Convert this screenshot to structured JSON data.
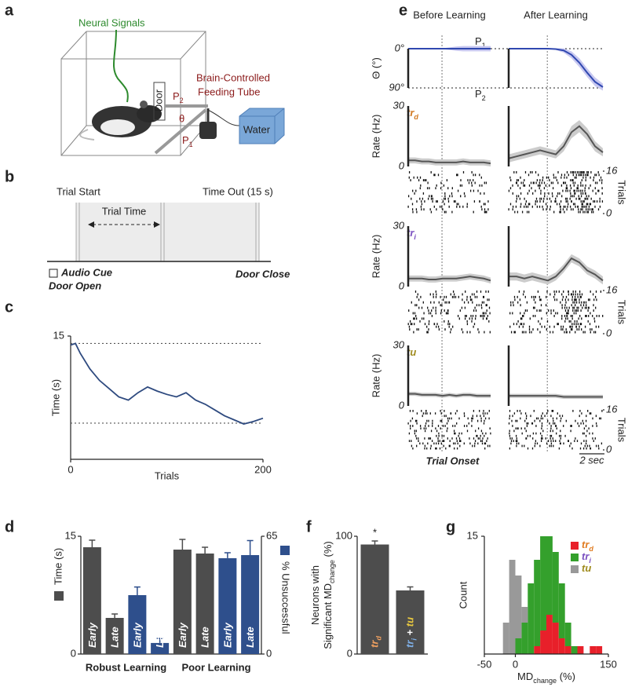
{
  "diagram_a": {
    "label": "a",
    "neural_signals": "Neural Signals",
    "door": "Door",
    "p2": "P",
    "p2_sub": "2",
    "theta": "θ",
    "p1": "P",
    "p1_sub": "1",
    "tube_line1": "Brain-Controlled",
    "tube_line2": "Feeding Tube",
    "water": "Water"
  },
  "diagram_b": {
    "label": "b",
    "trial_start": "Trial Start",
    "time_out": "Time Out (15 s)",
    "trial_time": "Trial Time",
    "audio_cue": "Audio Cue",
    "door_open": "Door Open",
    "door_close": "Door Close"
  },
  "chart_data": [
    {
      "type": "line",
      "panel_label": "c",
      "ylabel": "Time (s)",
      "xlabel": "Trials",
      "x": [
        0,
        5,
        10,
        20,
        30,
        40,
        50,
        60,
        70,
        80,
        90,
        100,
        110,
        120,
        130,
        140,
        150,
        160,
        170,
        180,
        190,
        200
      ],
      "series": [
        {
          "color": "#2e4a7f",
          "values": [
            13.9,
            14.1,
            12.9,
            11.0,
            9.6,
            8.6,
            7.6,
            7.2,
            8.1,
            8.8,
            8.3,
            7.9,
            7.6,
            8.1,
            7.2,
            6.7,
            6.0,
            5.3,
            4.8,
            4.3,
            4.6,
            5.0
          ]
        }
      ],
      "hlines": [
        14.1,
        4.4
      ],
      "xlim": [
        0,
        200
      ],
      "xticks": [
        0,
        200
      ],
      "ylim": [
        0,
        15
      ],
      "yticks": [
        15
      ]
    },
    {
      "type": "bar",
      "panel_label": "d",
      "categories": [
        "Early",
        "Late",
        "Early",
        "Late",
        "Early",
        "Late",
        "Early",
        "Late"
      ],
      "groups": [
        "Robust Learning",
        "Poor Learning"
      ],
      "series": [
        {
          "name": "Time (s)",
          "color": "#4d4d4d",
          "values": [
            13.6,
            4.6,
            null,
            null,
            13.3,
            12.8,
            null,
            null
          ],
          "errors": [
            0.9,
            0.5,
            null,
            null,
            1.3,
            0.8,
            null,
            null
          ]
        },
        {
          "name": "% Unsuccessful",
          "color": "#2e4f8c",
          "axis": "y2",
          "values": [
            null,
            null,
            32.5,
            6.1,
            null,
            null,
            52.9,
            54.6
          ],
          "errors": [
            null,
            null,
            4.5,
            2.5,
            null,
            null,
            3,
            8
          ]
        }
      ],
      "ylim": [
        0,
        15
      ],
      "yticks": [
        0,
        15
      ],
      "y2lim": [
        0,
        65
      ],
      "y2ticks": [
        0,
        65
      ]
    },
    {
      "type": "line-grid",
      "panel_label": "e",
      "columns": [
        "Before Learning",
        "After Learning"
      ],
      "xlabel": "Trial Onset",
      "scale_label": "2 sec",
      "rows": [
        {
          "ylabel": "Θ (°)",
          "ylim": [
            90,
            0
          ],
          "yticks": [
            {
              "value": 0,
              "label": "0°"
            },
            {
              "value": 90,
              "label": "90°"
            }
          ],
          "grid": true,
          "color": "#3048b0",
          "band_color": "#c8c8f0",
          "annotations": [
            [
              {
                "text": "P"
              },
              {
                "text": "1",
                "subscript": true
              }
            ],
            [
              {
                "text": "P"
              },
              {
                "text": "2",
                "subscript": true
              }
            ]
          ],
          "series": [
            {
              "values": [
                0,
                0,
                0,
                0,
                0,
                0,
                0,
                0,
                0,
                0,
                0,
                0,
                0
              ],
              "errors": [
                1,
                1,
                1,
                1,
                1,
                1,
                3,
                5,
                6,
                6,
                6,
                6,
                6
              ]
            },
            {
              "values": [
                0,
                0,
                0,
                0,
                0,
                0,
                1,
                4,
                14,
                32,
                55,
                76,
                88
              ],
              "errors": [
                0,
                0,
                0,
                0,
                0,
                0,
                2,
                5,
                8,
                10,
                10,
                10,
                8
              ]
            }
          ]
        },
        {
          "tag": [
            {
              "text": "tr",
              "color": "#d07820"
            },
            {
              "text": "d",
              "color": "#d07820",
              "subscript": true
            }
          ],
          "ylabel": "Rate (Hz)",
          "ylim": [
            0,
            30
          ],
          "yticks": [
            0,
            30
          ],
          "color": "#555555",
          "band_color": "#cccccc",
          "raster_label": "Trials",
          "raster_lim": [
            0,
            16
          ],
          "raster_ticks": [
            0,
            16
          ],
          "series": [
            {
              "values": [
                3,
                3,
                2.5,
                2.5,
                2,
                2,
                2,
                2,
                2.5,
                2,
                2,
                2,
                1.5
              ],
              "errors": [
                1.5,
                1.5,
                1.5,
                1.5,
                1.5,
                1.5,
                1.5,
                1.5,
                1.5,
                1.5,
                1.5,
                1.5,
                1.5
              ]
            },
            {
              "values": [
                4,
                5,
                6,
                7,
                8,
                7,
                6,
                10,
                17,
                20,
                16,
                10,
                7
              ],
              "errors": [
                2,
                2,
                2,
                2,
                2,
                2,
                2,
                2.5,
                3,
                3,
                3,
                2.5,
                2
              ]
            }
          ]
        },
        {
          "tag": [
            {
              "text": "tr",
              "color": "#7a4fc0"
            },
            {
              "text": "i",
              "color": "#7a4fc0",
              "subscript": true
            }
          ],
          "ylabel": "Rate (Hz)",
          "ylim": [
            0,
            30
          ],
          "yticks": [
            0,
            30
          ],
          "color": "#555555",
          "band_color": "#cccccc",
          "raster_label": "Trials",
          "raster_lim": [
            0,
            16
          ],
          "raster_ticks": [
            0,
            16
          ],
          "series": [
            {
              "values": [
                4,
                4,
                4,
                3.5,
                3.5,
                4,
                4,
                4,
                4.5,
                5,
                4.5,
                4,
                3
              ],
              "errors": [
                1.5,
                1.5,
                1.5,
                1.5,
                1.5,
                1.5,
                1.5,
                1.5,
                1.5,
                1.5,
                1.5,
                1.5,
                1.5
              ]
            },
            {
              "values": [
                5,
                5,
                4,
                5,
                4,
                3,
                5,
                9,
                14,
                12,
                8,
                6,
                3
              ],
              "errors": [
                2,
                2,
                2,
                2,
                2,
                2,
                2,
                2,
                2,
                2,
                2,
                2,
                2
              ]
            }
          ]
        },
        {
          "tag": [
            {
              "text": "tu",
              "color": "#a08c20"
            }
          ],
          "ylabel": "Rate (Hz)",
          "ylim": [
            0,
            30
          ],
          "yticks": [
            0,
            30
          ],
          "color": "#555555",
          "band_color": "#cccccc",
          "raster_label": "Trials",
          "raster_lim": [
            0,
            16
          ],
          "raster_ticks": [
            0,
            16
          ],
          "series": [
            {
              "values": [
                6,
                6,
                5.5,
                5.5,
                5.5,
                5,
                5.5,
                5,
                5.5,
                5.5,
                5,
                5,
                5
              ],
              "errors": [
                1,
                1,
                1,
                1,
                1,
                1,
                1,
                1,
                1,
                1,
                1,
                1,
                1
              ]
            },
            {
              "values": [
                5,
                5,
                5,
                5,
                5,
                5,
                5,
                4.5,
                4.5,
                4.5,
                4.5,
                4.5,
                4.5
              ],
              "errors": [
                1,
                1,
                1,
                1,
                1,
                1,
                1,
                1,
                1,
                1,
                1,
                1,
                1
              ]
            }
          ]
        }
      ]
    },
    {
      "type": "bar",
      "panel_label": "f",
      "categories": [
        [
          {
            "text": "tr",
            "color": "#f0a060"
          },
          {
            "text": "d",
            "color": "#f0a060",
            "subscript": true
          }
        ],
        [
          {
            "text": "tr",
            "color": "#7fb0e8"
          },
          {
            "text": "i",
            "color": "#7fb0e8",
            "subscript": true
          },
          {
            "text": " + ",
            "color": "#ffffff"
          },
          {
            "text": "tu",
            "color": "#e8c840"
          }
        ]
      ],
      "values": [
        93,
        54
      ],
      "errors": [
        3,
        3
      ],
      "color": "#4d4d4d",
      "significance": [
        "*",
        null
      ],
      "ylabel_lines": [
        [
          {
            "text": "Neurons with"
          }
        ],
        [
          {
            "text": "Significant MD"
          },
          {
            "text": "change",
            "subscript": true
          },
          {
            "text": " (%)"
          }
        ]
      ],
      "ylim": [
        0,
        100
      ],
      "yticks": [
        0,
        100
      ]
    },
    {
      "type": "histogram",
      "panel_label": "g",
      "ylabel": "Count",
      "xlabel": [
        {
          "text": "MD"
        },
        {
          "text": "change",
          "subscript": true
        },
        {
          "text": " (%)"
        }
      ],
      "bins": [
        -20,
        -10,
        0,
        10,
        20,
        30,
        40,
        50,
        60,
        70,
        80,
        90,
        100,
        110,
        120,
        130,
        140
      ],
      "series": [
        {
          "name": [
            {
              "text": "tr",
              "color": "#e07b20"
            },
            {
              "text": "d",
              "color": "#e07b20",
              "subscript": true
            }
          ],
          "color": "#e8202a",
          "values": [
            0,
            0,
            0,
            0,
            0,
            1,
            3,
            5,
            4,
            2,
            1,
            0,
            1,
            0,
            1,
            1
          ]
        },
        {
          "name": [
            {
              "text": "tr",
              "color": "#7a4fc0"
            },
            {
              "text": "i",
              "color": "#7a4fc0",
              "subscript": true
            }
          ],
          "color": "#34a02c",
          "values": [
            0,
            0,
            2,
            4,
            9,
            11,
            12,
            10,
            9,
            7,
            3,
            1,
            0,
            0,
            0,
            0
          ]
        },
        {
          "name": [
            {
              "text": "tu",
              "color": "#a08c20"
            }
          ],
          "color": "#999999",
          "values": [
            4,
            12,
            8,
            2,
            0,
            0,
            0,
            0,
            0,
            0,
            0,
            0,
            0,
            0,
            0,
            0
          ]
        }
      ],
      "legend": "top-right",
      "xlim": [
        -50,
        150
      ],
      "xticks": [
        -50,
        0,
        150
      ],
      "ylim": [
        0,
        15
      ],
      "yticks": [
        15
      ]
    }
  ]
}
